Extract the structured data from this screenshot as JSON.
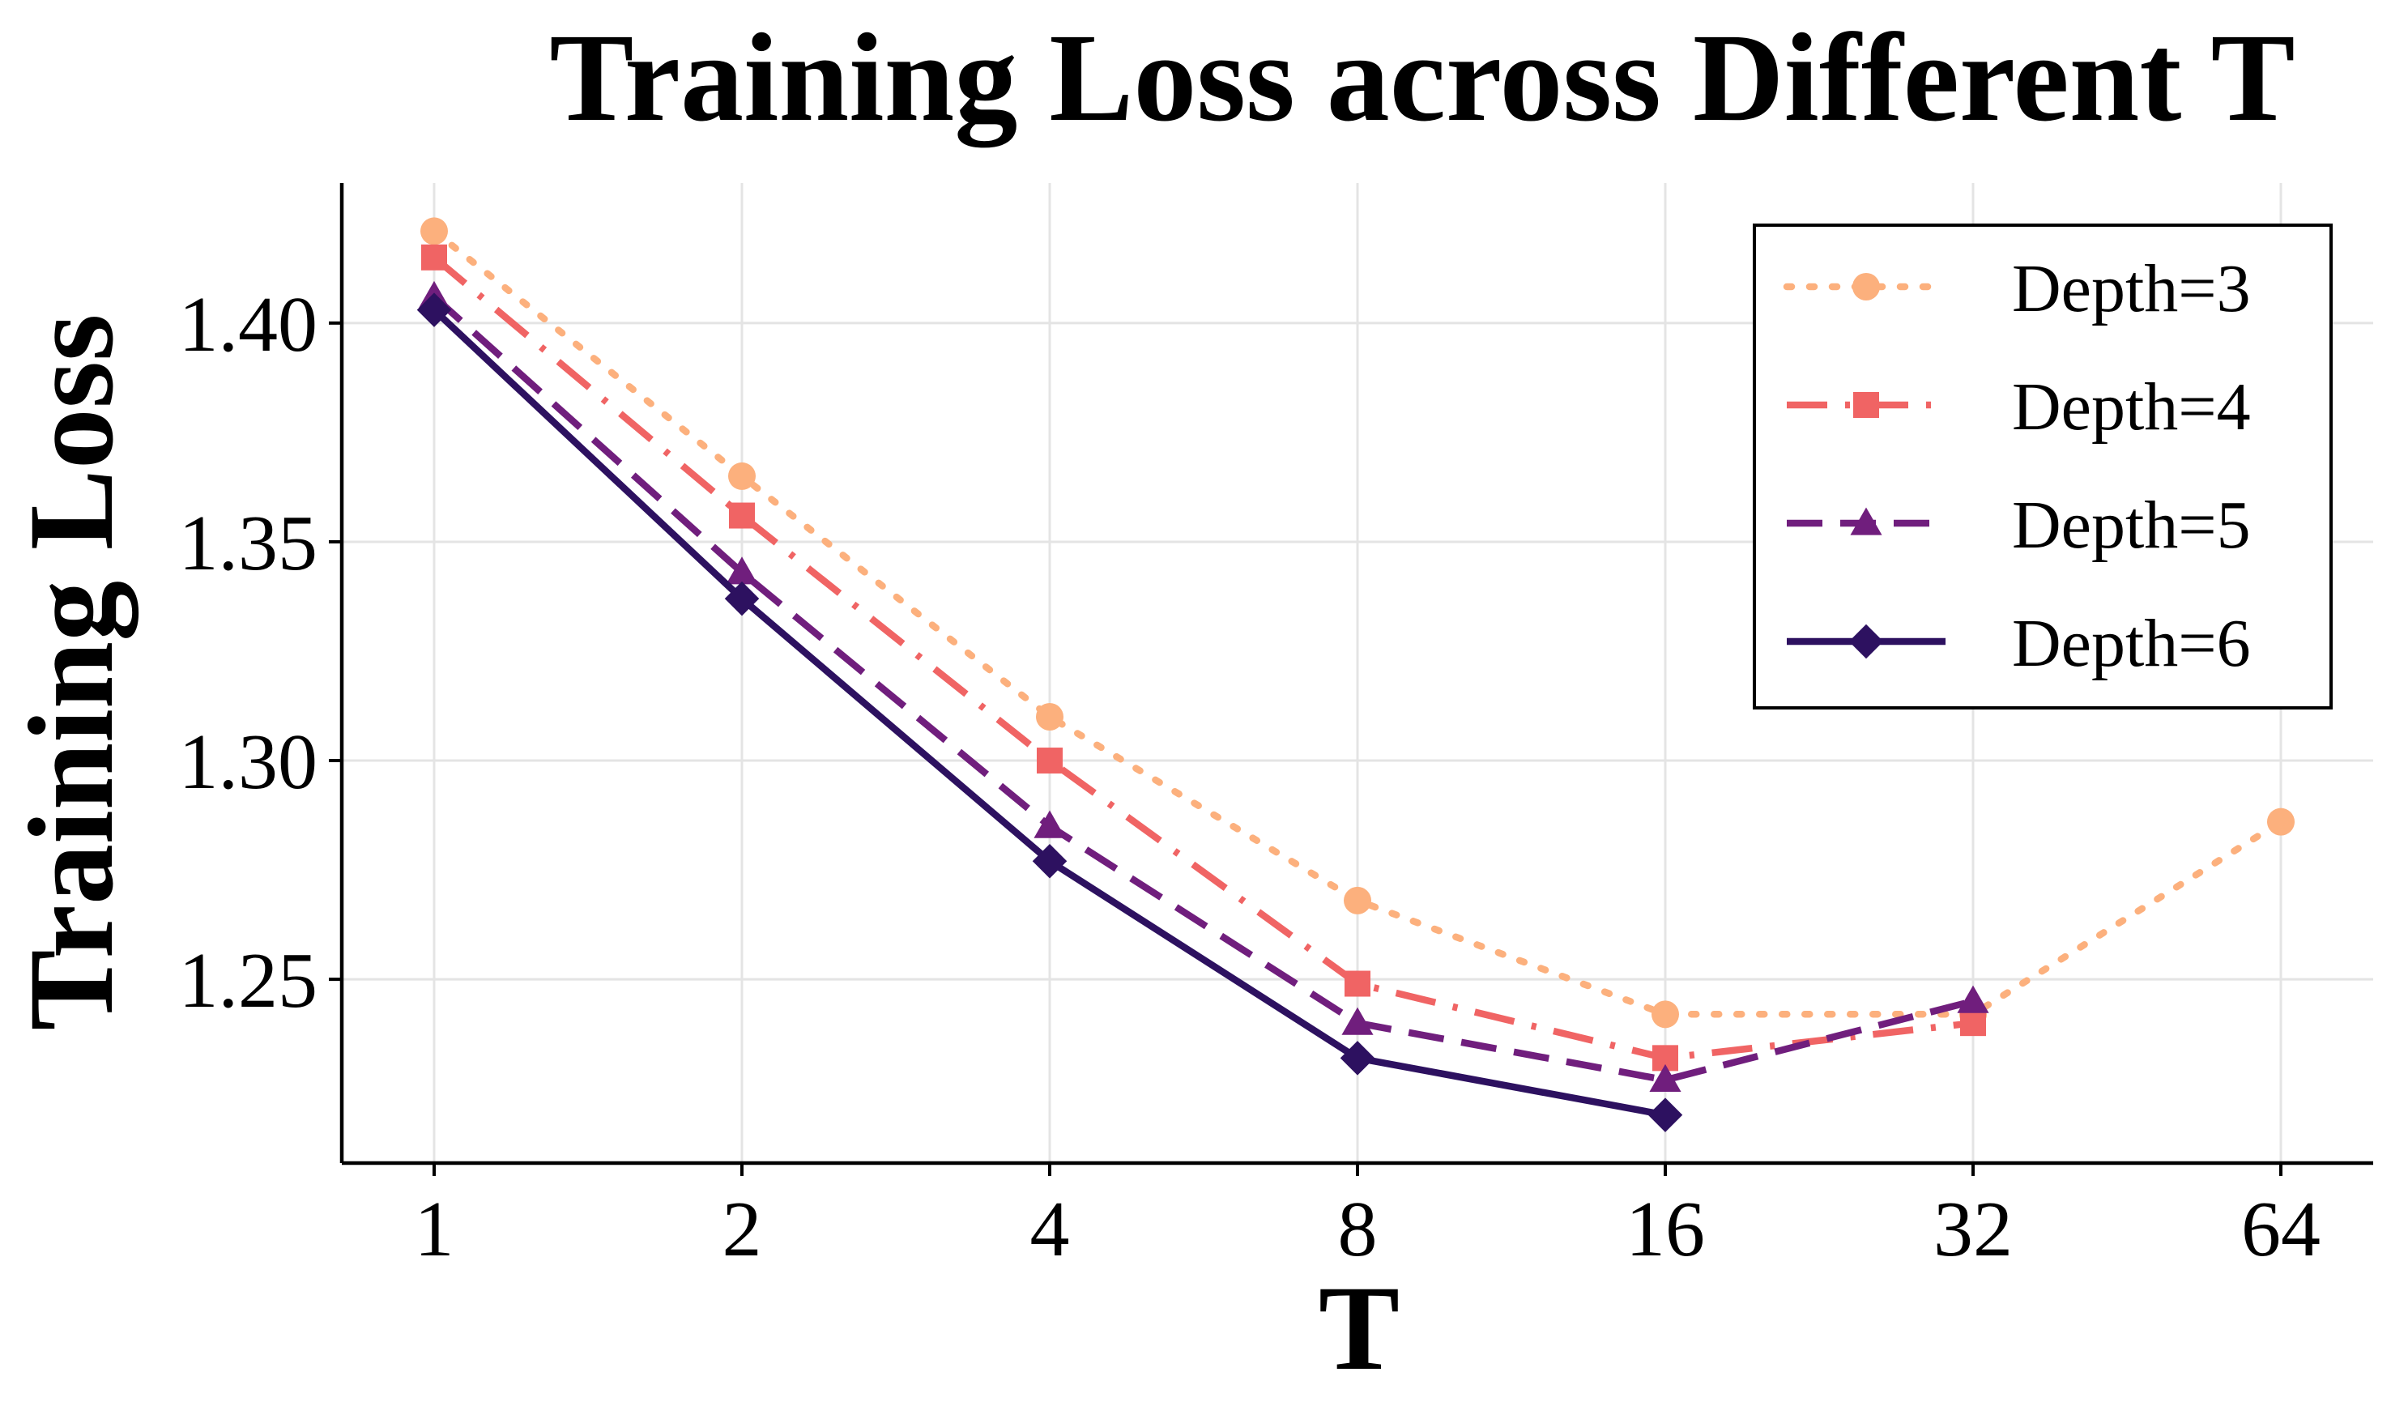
{
  "chart_data": {
    "type": "line",
    "title": "Training Loss across Different T",
    "xlabel": "T",
    "ylabel": "Training Loss",
    "x_scale": "log2",
    "categories": [
      "1",
      "2",
      "4",
      "8",
      "16",
      "32",
      "64"
    ],
    "x": [
      1,
      2,
      4,
      8,
      16,
      32,
      64
    ],
    "ylim": [
      1.208,
      1.432
    ],
    "yticks": [
      1.25,
      1.3,
      1.35,
      1.4
    ],
    "ytick_labels": [
      "1.25",
      "1.30",
      "1.35",
      "1.40"
    ],
    "grid": true,
    "legend_position": "top-right",
    "series": [
      {
        "name": "Depth=3",
        "color": "#fcb07d",
        "marker": "circle",
        "line_style": "dotted",
        "values": [
          1.421,
          1.365,
          1.31,
          1.268,
          1.242,
          1.242,
          1.286
        ]
      },
      {
        "name": "Depth=4",
        "color": "#f06464",
        "marker": "square",
        "line_style": "dashdot",
        "values": [
          1.415,
          1.356,
          1.3,
          1.249,
          1.232,
          1.24,
          null
        ]
      },
      {
        "name": "Depth=5",
        "color": "#701e7d",
        "marker": "triangle",
        "line_style": "dashed",
        "values": [
          1.406,
          1.343,
          1.285,
          1.24,
          1.227,
          1.245,
          null
        ]
      },
      {
        "name": "Depth=6",
        "color": "#2d1160",
        "marker": "diamond",
        "line_style": "solid",
        "values": [
          1.403,
          1.337,
          1.277,
          1.232,
          1.219,
          null,
          null
        ]
      }
    ]
  }
}
